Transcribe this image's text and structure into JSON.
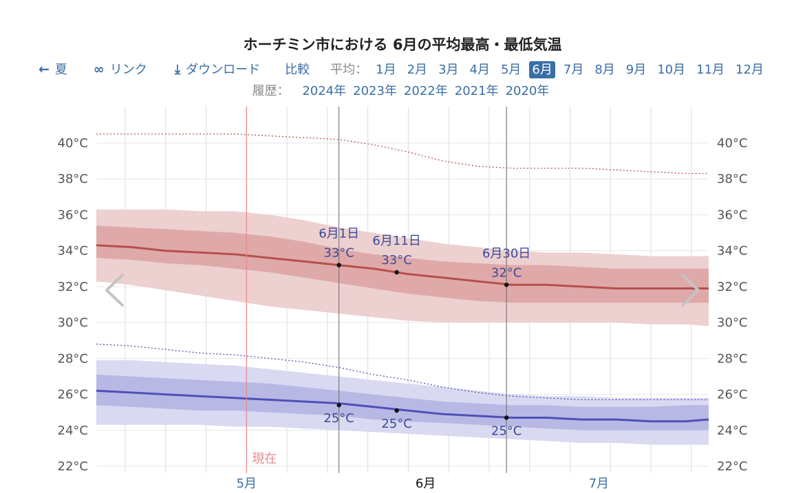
{
  "title": "ホーチミン市における 6月の平均最高・最低気温",
  "nav": {
    "prev_label": "夏",
    "link_label": "リンク",
    "download_label": "ダウンロード",
    "compare_label": "比較",
    "avg_label": "平均：",
    "months": [
      "1月",
      "2月",
      "3月",
      "4月",
      "5月",
      "6月",
      "7月",
      "8月",
      "9月",
      "10月",
      "11月",
      "12月"
    ],
    "active_month": "6月"
  },
  "history": {
    "label": "履歴：",
    "years": [
      "2024年",
      "2023年",
      "2022年",
      "2021年",
      "2020年"
    ]
  },
  "colors": {
    "high_line": "#b5504c",
    "high_band_outer": "#edd0d0",
    "high_band_inner": "#dfa9a9",
    "low_line": "#4f4fb8",
    "low_band_outer": "#d9d9f1",
    "low_band_inner": "#b8b8e5",
    "now_line": "#e88a8a",
    "link": "#3a6ea5"
  },
  "chart_data": {
    "type": "area",
    "x_unit": "date",
    "x": [
      "4/19",
      "4/25",
      "5/1",
      "5/7",
      "5/13",
      "5/19",
      "5/25",
      "5/31",
      "6/6",
      "6/12",
      "6/18",
      "6/24",
      "6/30",
      "7/6",
      "7/12",
      "7/18",
      "7/24",
      "7/30",
      "8/3"
    ],
    "series": [
      {
        "key": "high_avg",
        "values": [
          34.3,
          34.2,
          34.0,
          33.9,
          33.8,
          33.6,
          33.4,
          33.2,
          33.0,
          32.7,
          32.5,
          32.3,
          32.1,
          32.1,
          32.0,
          31.9,
          31.9,
          31.9,
          31.9
        ]
      },
      {
        "key": "high_p25",
        "values": [
          33.6,
          33.5,
          33.3,
          33.2,
          33.0,
          32.8,
          32.5,
          32.2,
          31.9,
          31.6,
          31.4,
          31.2,
          31.1,
          31.1,
          31.1,
          31.1,
          31.1,
          31.1,
          31.1
        ]
      },
      {
        "key": "high_p75",
        "values": [
          35.4,
          35.3,
          35.2,
          35.1,
          35.0,
          34.8,
          34.5,
          34.1,
          33.8,
          33.6,
          33.4,
          33.3,
          33.2,
          33.2,
          33.1,
          33.0,
          33.0,
          33.0,
          33.0
        ]
      },
      {
        "key": "high_p10",
        "values": [
          32.3,
          32.1,
          31.8,
          31.5,
          31.2,
          30.9,
          30.7,
          30.5,
          30.3,
          30.1,
          30.0,
          30.0,
          30.0,
          30.0,
          30.0,
          30.0,
          29.9,
          29.9,
          29.8
        ]
      },
      {
        "key": "high_p90",
        "values": [
          36.3,
          36.3,
          36.3,
          36.2,
          36.2,
          36.0,
          35.7,
          35.3,
          35.0,
          34.7,
          34.4,
          34.2,
          34.0,
          33.9,
          33.9,
          33.8,
          33.7,
          33.7,
          33.7
        ]
      },
      {
        "key": "high_record",
        "values": [
          40.5,
          40.5,
          40.5,
          40.5,
          40.5,
          40.4,
          40.3,
          40.2,
          39.9,
          39.5,
          39.0,
          38.7,
          38.6,
          38.6,
          38.6,
          38.5,
          38.4,
          38.3,
          38.3
        ]
      },
      {
        "key": "low_avg",
        "values": [
          26.2,
          26.1,
          26.0,
          25.9,
          25.8,
          25.7,
          25.6,
          25.5,
          25.3,
          25.1,
          24.9,
          24.8,
          24.7,
          24.7,
          24.6,
          24.6,
          24.5,
          24.5,
          24.6
        ]
      },
      {
        "key": "low_p25",
        "values": [
          25.4,
          25.3,
          25.2,
          25.1,
          25.1,
          25.0,
          24.9,
          24.8,
          24.6,
          24.5,
          24.4,
          24.3,
          24.2,
          24.1,
          24.0,
          24.0,
          24.0,
          24.0,
          24.0
        ]
      },
      {
        "key": "low_p75",
        "values": [
          27.1,
          27.0,
          26.9,
          26.8,
          26.7,
          26.6,
          26.4,
          26.2,
          26.0,
          25.8,
          25.6,
          25.5,
          25.4,
          25.4,
          25.3,
          25.3,
          25.3,
          25.4,
          25.4
        ]
      },
      {
        "key": "low_p10",
        "values": [
          24.3,
          24.3,
          24.3,
          24.3,
          24.2,
          24.2,
          24.1,
          24.0,
          23.9,
          23.8,
          23.7,
          23.6,
          23.5,
          23.4,
          23.3,
          23.3,
          23.2,
          23.2,
          23.2
        ]
      },
      {
        "key": "low_p90",
        "values": [
          27.9,
          27.9,
          27.8,
          27.7,
          27.6,
          27.4,
          27.2,
          27.0,
          26.8,
          26.6,
          26.4,
          26.2,
          26.0,
          25.9,
          25.9,
          25.8,
          25.8,
          25.8,
          25.8
        ]
      },
      {
        "key": "low_record",
        "values": [
          28.8,
          28.7,
          28.5,
          28.3,
          28.2,
          28.0,
          27.8,
          27.5,
          27.1,
          26.8,
          26.4,
          26.1,
          25.9,
          25.8,
          25.7,
          25.7,
          25.7,
          25.7,
          25.7
        ]
      }
    ],
    "markers": [
      {
        "date_label": "6月1日",
        "high": "33°C",
        "low": "25°C",
        "high_value": 33.2,
        "low_value": 25.4,
        "x": "5/31"
      },
      {
        "date_label": "6月11日",
        "high": "33°C",
        "low": "25°C",
        "high_value": 32.8,
        "low_value": 25.1,
        "x": "6/10"
      },
      {
        "date_label": "6月30日",
        "high": "32°C",
        "low": "25°C",
        "high_value": 32.1,
        "low_value": 24.7,
        "x": "6/29"
      }
    ],
    "now_label": "現在",
    "now_x": "5/15",
    "y_ticks": [
      "22°C",
      "24°C",
      "26°C",
      "28°C",
      "30°C",
      "32°C",
      "34°C",
      "36°C",
      "38°C",
      "40°C"
    ],
    "ylim": [
      21.8,
      42.2
    ],
    "month_labels": [
      {
        "label": "5月",
        "x": "5/15",
        "highlight": false
      },
      {
        "label": "6月",
        "x": "6/15",
        "highlight": true
      },
      {
        "label": "7月",
        "x": "7/15",
        "highlight": false
      }
    ],
    "grid": true
  }
}
